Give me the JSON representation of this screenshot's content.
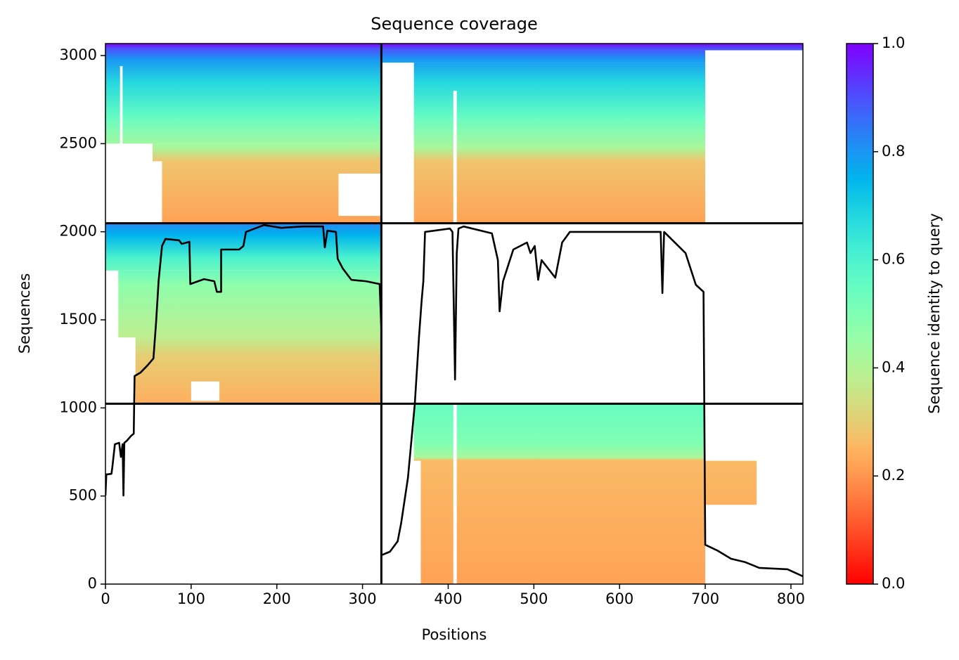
{
  "chart_data": {
    "type": "heatmap",
    "title": "Sequence coverage",
    "xlabel": "Positions",
    "ylabel": "Sequences",
    "xlim": [
      0,
      814
    ],
    "ylim": [
      0,
      3068
    ],
    "xticks": [
      0,
      100,
      200,
      300,
      400,
      500,
      600,
      700,
      800
    ],
    "yticks": [
      0,
      500,
      1000,
      1500,
      2000,
      2500,
      3000
    ],
    "colormap": "rainbow_r",
    "colorbar": {
      "label": "Sequence identity to query",
      "lim": [
        0,
        1
      ],
      "ticks": [
        {
          "value": 0,
          "label": "0.0"
        },
        {
          "value": 0.2,
          "label": "0.2"
        },
        {
          "value": 0.4,
          "label": "0.4"
        },
        {
          "value": 0.6,
          "label": "0.6"
        },
        {
          "value": 0.8,
          "label": "0.8"
        },
        {
          "value": 1,
          "label": "1.0"
        }
      ]
    },
    "panels": [
      {
        "stops": [
          [
            3068,
            1.0
          ],
          [
            3040,
            0.9
          ],
          [
            2980,
            0.8
          ],
          [
            2850,
            0.68
          ],
          [
            2650,
            0.55
          ],
          [
            2480,
            0.42
          ],
          [
            2400,
            0.28
          ],
          [
            2048,
            0.22
          ]
        ],
        "blocks": [
          {
            "x": [
              0,
              322
            ],
            "y": [
              2500,
              3068
            ]
          },
          {
            "x": [
              55,
              322
            ],
            "y": [
              2400,
              2500
            ]
          },
          {
            "x": [
              66,
              322
            ],
            "y": [
              2048,
              2400
            ]
          }
        ]
      },
      {
        "stops": [
          [
            3068,
            1.0
          ],
          [
            3040,
            0.9
          ],
          [
            2980,
            0.8
          ],
          [
            2850,
            0.68
          ],
          [
            2650,
            0.55
          ],
          [
            2480,
            0.42
          ],
          [
            2400,
            0.28
          ],
          [
            2048,
            0.22
          ]
        ],
        "blocks": [
          {
            "x": [
              322,
              814
            ],
            "y": [
              3030,
              3068
            ]
          },
          {
            "x": [
              322,
              700
            ],
            "y": [
              2960,
              3030
            ]
          },
          {
            "x": [
              360,
              700
            ],
            "y": [
              2048,
              2960
            ]
          }
        ]
      },
      {
        "stops": [
          [
            2048,
            0.82
          ],
          [
            1980,
            0.75
          ],
          [
            1850,
            0.6
          ],
          [
            1700,
            0.47
          ],
          [
            1400,
            0.38
          ],
          [
            1300,
            0.3
          ],
          [
            1024,
            0.24
          ]
        ],
        "blocks": [
          {
            "x": [
              0,
              322
            ],
            "y": [
              1780,
              2048
            ]
          },
          {
            "x": [
              15,
              322
            ],
            "y": [
              1400,
              1780
            ]
          },
          {
            "x": [
              35,
              322
            ],
            "y": [
              1024,
              1400
            ]
          }
        ]
      },
      {
        "stops": [
          [
            1024,
            0.55
          ],
          [
            800,
            0.5
          ],
          [
            720,
            0.42
          ],
          [
            700,
            0.26
          ],
          [
            0,
            0.22
          ]
        ],
        "blocks": [
          {
            "x": [
              360,
              700
            ],
            "y": [
              700,
              1024
            ]
          },
          {
            "x": [
              368,
              700
            ],
            "y": [
              0,
              700
            ]
          },
          {
            "x": [
              700,
              760
            ],
            "y": [
              450,
              700
            ]
          }
        ]
      }
    ],
    "gaps": [
      {
        "x": [
          406,
          410
        ],
        "y": [
          0,
          1024
        ]
      },
      {
        "x": [
          406,
          410
        ],
        "y": [
          2048,
          2800
        ]
      },
      {
        "x": [
          272,
          322
        ],
        "y": [
          2090,
          2330
        ]
      },
      {
        "x": [
          100,
          133
        ],
        "y": [
          1040,
          1150
        ]
      },
      {
        "x": [
          17,
          20
        ],
        "y": [
          2480,
          2940
        ]
      }
    ],
    "chain_breaks": {
      "x": [
        322
      ],
      "y": [
        1024,
        2048
      ]
    },
    "series": [
      {
        "color": "#000000",
        "x": [
          0,
          1,
          7,
          8,
          11,
          16,
          18,
          20,
          21,
          22,
          25,
          30,
          33,
          34,
          41,
          49,
          56,
          59,
          62,
          66,
          70,
          86,
          89,
          98,
          99,
          115,
          127,
          130,
          135,
          135,
          156,
          161,
          164,
          185,
          205,
          230,
          254,
          256,
          259,
          269,
          271,
          277,
          287,
          304,
          320,
          322,
          322,
          332,
          341,
          345,
          353,
          361,
          366,
          369,
          371,
          373,
          402,
          405,
          408,
          410,
          412,
          418,
          451,
          458,
          460,
          464,
          476,
          492,
          496,
          501,
          505,
          509,
          525,
          533,
          542,
          615,
          648,
          650,
          652,
          677,
          689,
          698,
          700,
          714,
          730,
          747,
          763,
          796,
          814
        ],
        "values": [
          503,
          622,
          626,
          662,
          794,
          802,
          722,
          794,
          503,
          802,
          814,
          842,
          854,
          1181,
          1201,
          1241,
          1281,
          1480,
          1719,
          1919,
          1959,
          1951,
          1931,
          1943,
          1703,
          1731,
          1719,
          1659,
          1659,
          1899,
          1899,
          1919,
          1999,
          2038,
          2022,
          2030,
          2030,
          1911,
          2006,
          1999,
          1847,
          1791,
          1727,
          1719,
          1703,
          1440,
          164,
          184,
          243,
          343,
          602,
          1021,
          1408,
          1608,
          1719,
          1999,
          2018,
          1999,
          1161,
          1879,
          2018,
          2030,
          1991,
          1839,
          1548,
          1719,
          1899,
          1939,
          1879,
          1919,
          1727,
          1839,
          1739,
          1939,
          1999,
          1999,
          1999,
          1652,
          1999,
          1879,
          1699,
          1659,
          223,
          191,
          144,
          124,
          92,
          84,
          44
        ]
      }
    ]
  }
}
